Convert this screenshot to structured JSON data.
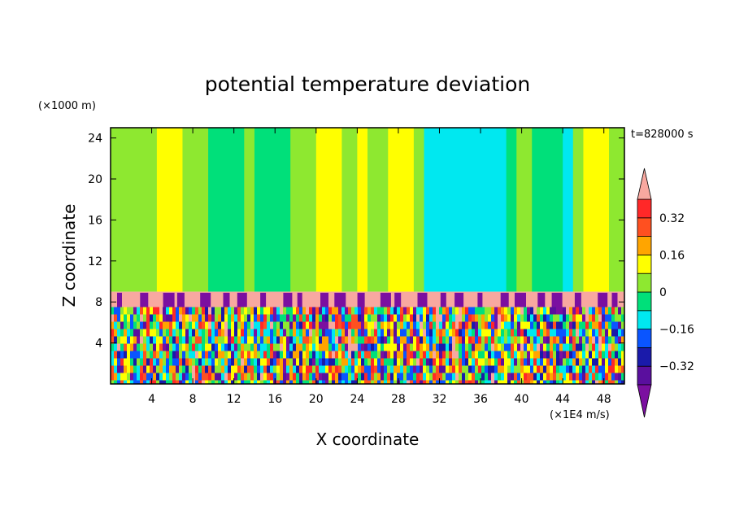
{
  "chart_data": {
    "type": "heatmap",
    "title": "potential temperature deviation",
    "xlabel": "X coordinate",
    "ylabel": "Z coordinate",
    "x_unit": "(×1E4 m/s)",
    "y_unit": "(×1000 m)",
    "time_label": "t=828000 s",
    "xlim": [
      0,
      50
    ],
    "ylim": [
      0,
      25
    ],
    "x_ticks": [
      "4",
      "8",
      "12",
      "16",
      "20",
      "24",
      "28",
      "32",
      "36",
      "40",
      "44",
      "48"
    ],
    "x_tick_values": [
      4,
      8,
      12,
      16,
      20,
      24,
      28,
      32,
      36,
      40,
      44,
      48
    ],
    "y_ticks": [
      "4",
      "8",
      "12",
      "16",
      "20",
      "24"
    ],
    "y_tick_values": [
      4,
      8,
      12,
      16,
      20,
      24
    ],
    "colorbar": {
      "labels": [
        "0.32",
        "0.16",
        "0",
        "−0.16",
        "−0.32"
      ],
      "label_values": [
        0.32,
        0.16,
        0,
        -0.16,
        -0.32
      ],
      "levels": [
        -0.4,
        -0.32,
        -0.24,
        -0.16,
        -0.08,
        0,
        0.08,
        0.16,
        0.24,
        0.32,
        0.4
      ],
      "colors": [
        "#5a0f9e",
        "#1a1aaa",
        "#0a55ff",
        "#00e8f0",
        "#00e07a",
        "#8ee830",
        "#ffff00",
        "#ffa500",
        "#ff5020",
        "#ff2828"
      ],
      "under_color": "#7b0fa0",
      "over_color": "#f8a8a0"
    },
    "upper_layer": {
      "z_range": [
        9,
        25
      ],
      "columns": [
        {
          "x0": 0,
          "x1": 4.5,
          "value": 0.04
        },
        {
          "x0": 4.5,
          "x1": 7,
          "value": 0.12
        },
        {
          "x0": 7,
          "x1": 9.5,
          "value": 0.04
        },
        {
          "x0": 9.5,
          "x1": 13,
          "value": -0.04
        },
        {
          "x0": 13,
          "x1": 14,
          "value": 0.04
        },
        {
          "x0": 14,
          "x1": 17.5,
          "value": -0.04
        },
        {
          "x0": 17.5,
          "x1": 20,
          "value": 0.04
        },
        {
          "x0": 20,
          "x1": 22.5,
          "value": 0.12
        },
        {
          "x0": 22.5,
          "x1": 24,
          "value": 0.04
        },
        {
          "x0": 24,
          "x1": 25,
          "value": 0.12
        },
        {
          "x0": 25,
          "x1": 27,
          "value": 0.04
        },
        {
          "x0": 27,
          "x1": 29.5,
          "value": 0.12
        },
        {
          "x0": 29.5,
          "x1": 30.5,
          "value": 0.04
        },
        {
          "x0": 30.5,
          "x1": 38.5,
          "value": -0.12
        },
        {
          "x0": 38.5,
          "x1": 39.5,
          "value": -0.04
        },
        {
          "x0": 39.5,
          "x1": 41,
          "value": 0.04
        },
        {
          "x0": 41,
          "x1": 44,
          "value": -0.04
        },
        {
          "x0": 44,
          "x1": 45,
          "value": -0.12
        },
        {
          "x0": 45,
          "x1": 46,
          "value": 0.04
        },
        {
          "x0": 46,
          "x1": 48.5,
          "value": 0.12
        },
        {
          "x0": 48.5,
          "x1": 50,
          "value": 0.04
        }
      ]
    },
    "inversion_band": {
      "z_range": [
        7.5,
        9
      ],
      "value": 0.42
    },
    "turbulent_layer": {
      "z_range": [
        0,
        7.5
      ]
    }
  }
}
